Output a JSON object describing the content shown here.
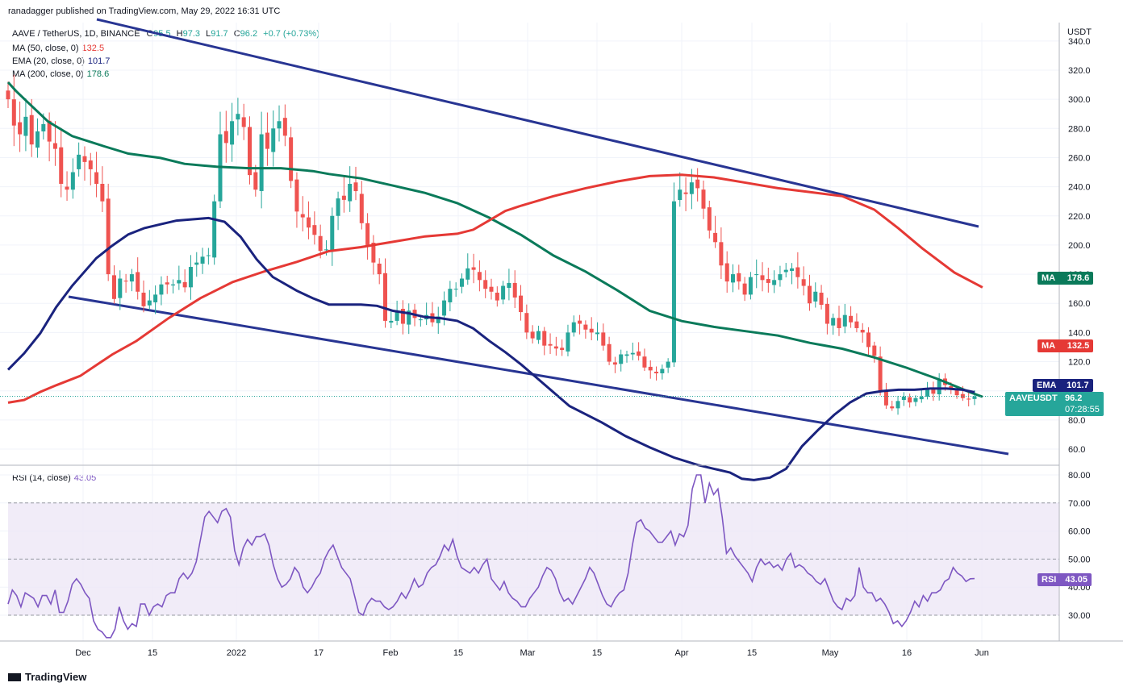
{
  "header": {
    "published": "ranadagger published on TradingView.com, May 29, 2022 16:31 UTC",
    "currency": "USDT",
    "symbol_line": "AAVE / TetherUS, 1D, BINANCE",
    "ohlc": {
      "o_label": "O",
      "o": "95.5",
      "h_label": "H",
      "h": "97.3",
      "l_label": "L",
      "l": "91.7",
      "c_label": "C",
      "c": "96.2",
      "change": "+0.7 (+0.73%)"
    }
  },
  "indicators": [
    {
      "label": "MA (50, close, 0)",
      "value": "132.5",
      "color": "#e53935"
    },
    {
      "label": "EMA (20, close, 0)",
      "value": "101.7",
      "color": "#1a237e"
    },
    {
      "label": "MA (200, close, 0)",
      "value": "178.6",
      "color": "#0a7a5a"
    }
  ],
  "price_tags": {
    "ma200": {
      "label": "MA",
      "value": "178.6",
      "color": "#0a7a5a"
    },
    "ma50": {
      "label": "MA",
      "value": "132.5",
      "color": "#e53935"
    },
    "ema20": {
      "label": "EMA",
      "value": "101.7",
      "color": "#1a237e"
    },
    "last": {
      "label": "AAVEUSDT",
      "value": "96.2",
      "countdown": "07:28:55",
      "color": "#26a69a"
    }
  },
  "rsi": {
    "label": "RSI (14, close)",
    "value": "43.05",
    "tag": "RSI",
    "color": "#7e57c2",
    "band_color": "#ede7f6",
    "values": [
      34,
      39,
      37,
      33,
      38,
      37,
      36,
      33,
      37,
      37,
      34,
      39,
      31,
      31,
      35,
      41,
      43,
      41,
      38,
      36,
      28,
      25,
      24,
      22,
      22,
      25,
      33,
      28,
      25,
      27,
      26,
      34,
      34,
      30,
      33,
      34,
      33,
      37,
      38,
      38,
      43,
      45,
      43,
      45,
      49,
      57,
      65,
      67,
      65,
      63,
      67,
      68,
      65,
      53,
      48,
      54,
      57,
      55,
      58,
      58,
      59,
      55,
      48,
      43,
      40,
      41,
      43,
      47,
      45,
      40,
      38,
      40,
      43,
      45,
      50,
      53,
      55,
      51,
      47,
      45,
      43,
      37,
      31,
      30,
      34,
      36,
      35,
      35,
      33,
      32,
      33,
      35,
      38,
      36,
      39,
      43,
      40,
      41,
      45,
      47,
      48,
      51,
      55,
      53,
      57,
      51,
      47,
      46,
      45,
      47,
      45,
      48,
      50,
      43,
      41,
      39,
      42,
      38,
      36,
      35,
      33,
      33,
      36,
      38,
      40,
      44,
      47,
      46,
      43,
      38,
      35,
      36,
      34,
      37,
      40,
      43,
      47,
      45,
      41,
      37,
      34,
      33,
      36,
      38,
      39,
      45,
      55,
      63,
      64,
      61,
      60,
      58,
      56,
      56,
      58,
      60,
      55,
      59,
      58,
      62,
      75,
      80,
      80,
      70,
      77,
      73,
      75,
      65,
      52,
      54,
      51,
      49,
      47,
      45,
      42,
      47,
      50,
      48,
      49,
      47,
      48,
      46,
      50,
      52,
      47,
      48,
      47,
      45,
      44,
      42,
      41,
      43,
      39,
      35,
      33,
      32,
      36,
      35,
      37,
      47,
      40,
      38,
      38,
      35,
      36,
      34,
      31,
      27,
      28,
      26,
      28,
      31,
      35,
      33,
      37,
      35,
      38,
      38,
      39,
      42,
      43,
      47,
      45,
      44,
      42,
      43,
      43.05
    ],
    "ticks": [
      "80.00",
      "70.00",
      "60.00",
      "50.00",
      "40.00",
      "30.00"
    ]
  },
  "chart_data": {
    "type": "candlestick",
    "title": "AAVE / TetherUS, 1D, BINANCE",
    "ylabel": "USDT",
    "ylim": [
      55,
      345
    ],
    "y_ticks": [
      "340.0",
      "320.0",
      "300.0",
      "280.0",
      "260.0",
      "240.0",
      "220.0",
      "200.0",
      "180.0",
      "160.0",
      "140.0",
      "120.0",
      "100.0",
      "80.0",
      "60.0"
    ],
    "x_ticks": [
      "Dec",
      "15",
      "2022",
      "17",
      "Feb",
      "15",
      "Mar",
      "15",
      "Apr",
      "15",
      "May",
      "16",
      "Jun"
    ],
    "closes": [
      300,
      282,
      276,
      288,
      269,
      278,
      283,
      271,
      266,
      242,
      238,
      250,
      262,
      257,
      252,
      242,
      230,
      180,
      163,
      177,
      175,
      180,
      168,
      158,
      162,
      166,
      173,
      173,
      173,
      176,
      171,
      185,
      188,
      192,
      193,
      230,
      276,
      270,
      285,
      290,
      281,
      248,
      238,
      276,
      266,
      280,
      285,
      275,
      244,
      223,
      219,
      212,
      207,
      196,
      197,
      220,
      232,
      231,
      242,
      237,
      215,
      200,
      188,
      180,
      148,
      148,
      155,
      146,
      155,
      150,
      149,
      152,
      147,
      151,
      162,
      170,
      170,
      177,
      184,
      183,
      176,
      170,
      168,
      162,
      172,
      174,
      164,
      154,
      140,
      136,
      141,
      131,
      131,
      129,
      128,
      140,
      147,
      146,
      142,
      140,
      140,
      131,
      120,
      118,
      125,
      125,
      126,
      124,
      116,
      114,
      112,
      115,
      120,
      230,
      238,
      235,
      243,
      239,
      225,
      210,
      202,
      186,
      175,
      180,
      175,
      166,
      178,
      180,
      176,
      174,
      176,
      180,
      183,
      184,
      178,
      172,
      160,
      168,
      159,
      146,
      150,
      143,
      152,
      147,
      143,
      140,
      130,
      124,
      100,
      90,
      88,
      93,
      96,
      92,
      95,
      96,
      101,
      98,
      108,
      104,
      101,
      97,
      95,
      94,
      96.2
    ],
    "series": [
      {
        "name": "MA (50, close, 0)",
        "last": 132.5,
        "color": "#e53935"
      },
      {
        "name": "EMA (20, close, 0)",
        "last": 101.7,
        "color": "#1a237e"
      },
      {
        "name": "MA (200, close, 0)",
        "last": 178.6,
        "color": "#0a7a5a"
      }
    ],
    "ma200_curve": [
      [
        0,
        312
      ],
      [
        10,
        306
      ],
      [
        25,
        298
      ],
      [
        50,
        285
      ],
      [
        80,
        275
      ],
      [
        120,
        268
      ],
      [
        150,
        263
      ],
      [
        190,
        260
      ],
      [
        220,
        256
      ],
      [
        260,
        254
      ],
      [
        300,
        253
      ],
      [
        340,
        253
      ],
      [
        380,
        251
      ],
      [
        400,
        249
      ],
      [
        440,
        246
      ],
      [
        480,
        241
      ],
      [
        520,
        236
      ],
      [
        560,
        229
      ],
      [
        600,
        219
      ],
      [
        640,
        207
      ],
      [
        680,
        193
      ],
      [
        720,
        182
      ],
      [
        760,
        169
      ],
      [
        800,
        155
      ],
      [
        840,
        148
      ],
      [
        880,
        144
      ],
      [
        920,
        141
      ],
      [
        960,
        138
      ],
      [
        1000,
        133
      ],
      [
        1040,
        129
      ],
      [
        1080,
        123
      ],
      [
        1120,
        116
      ],
      [
        1160,
        108
      ],
      [
        1200,
        99
      ],
      [
        1215,
        96
      ]
    ],
    "ma50_curve": [
      [
        0,
        248
      ],
      [
        20,
        246
      ],
      [
        40,
        240
      ],
      [
        60,
        235
      ],
      [
        90,
        228
      ],
      [
        130,
        212
      ],
      [
        160,
        202
      ],
      [
        200,
        185
      ],
      [
        240,
        170
      ],
      [
        280,
        158
      ],
      [
        320,
        150
      ],
      [
        360,
        143
      ],
      [
        400,
        135
      ],
      [
        440,
        132
      ],
      [
        480,
        128
      ],
      [
        520,
        124
      ],
      [
        560,
        122
      ],
      [
        580,
        119
      ],
      [
        600,
        112
      ],
      [
        620,
        105
      ],
      [
        640,
        101
      ],
      [
        680,
        94
      ],
      [
        720,
        88
      ],
      [
        760,
        83
      ],
      [
        800,
        79
      ],
      [
        840,
        78
      ],
      [
        880,
        80
      ],
      [
        920,
        84
      ],
      [
        960,
        88
      ],
      [
        1000,
        91
      ],
      [
        1040,
        94
      ],
      [
        1080,
        104
      ],
      [
        1110,
        118
      ],
      [
        1140,
        133
      ],
      [
        1180,
        151
      ],
      [
        1215,
        162
      ]
    ],
    "ema20_curve": [
      [
        0,
        239
      ],
      [
        20,
        226
      ],
      [
        40,
        210
      ],
      [
        60,
        189
      ],
      [
        80,
        172
      ],
      [
        110,
        150
      ],
      [
        130,
        140
      ],
      [
        150,
        131
      ],
      [
        170,
        126
      ],
      [
        190,
        123
      ],
      [
        210,
        120
      ],
      [
        230,
        119
      ],
      [
        250,
        118
      ],
      [
        270,
        121
      ],
      [
        290,
        133
      ],
      [
        310,
        151
      ],
      [
        330,
        165
      ],
      [
        360,
        176
      ],
      [
        380,
        182
      ],
      [
        400,
        187
      ],
      [
        420,
        187
      ],
      [
        440,
        187
      ],
      [
        460,
        188
      ],
      [
        480,
        192
      ],
      [
        500,
        194
      ],
      [
        520,
        197
      ],
      [
        540,
        198
      ],
      [
        560,
        200
      ],
      [
        580,
        206
      ],
      [
        600,
        216
      ],
      [
        620,
        225
      ],
      [
        640,
        235
      ],
      [
        660,
        246
      ],
      [
        700,
        268
      ],
      [
        740,
        281
      ],
      [
        770,
        292
      ],
      [
        800,
        301
      ],
      [
        830,
        309
      ],
      [
        860,
        315
      ],
      [
        880,
        318
      ],
      [
        900,
        321
      ],
      [
        915,
        326
      ],
      [
        930,
        327
      ],
      [
        950,
        325
      ],
      [
        970,
        318
      ],
      [
        990,
        300
      ],
      [
        1010,
        287
      ],
      [
        1030,
        275
      ],
      [
        1050,
        265
      ],
      [
        1070,
        258
      ],
      [
        1090,
        256
      ],
      [
        1110,
        255
      ],
      [
        1130,
        255
      ],
      [
        1150,
        254
      ],
      [
        1170,
        254
      ],
      [
        1190,
        255
      ],
      [
        1205,
        257
      ]
    ]
  }
}
